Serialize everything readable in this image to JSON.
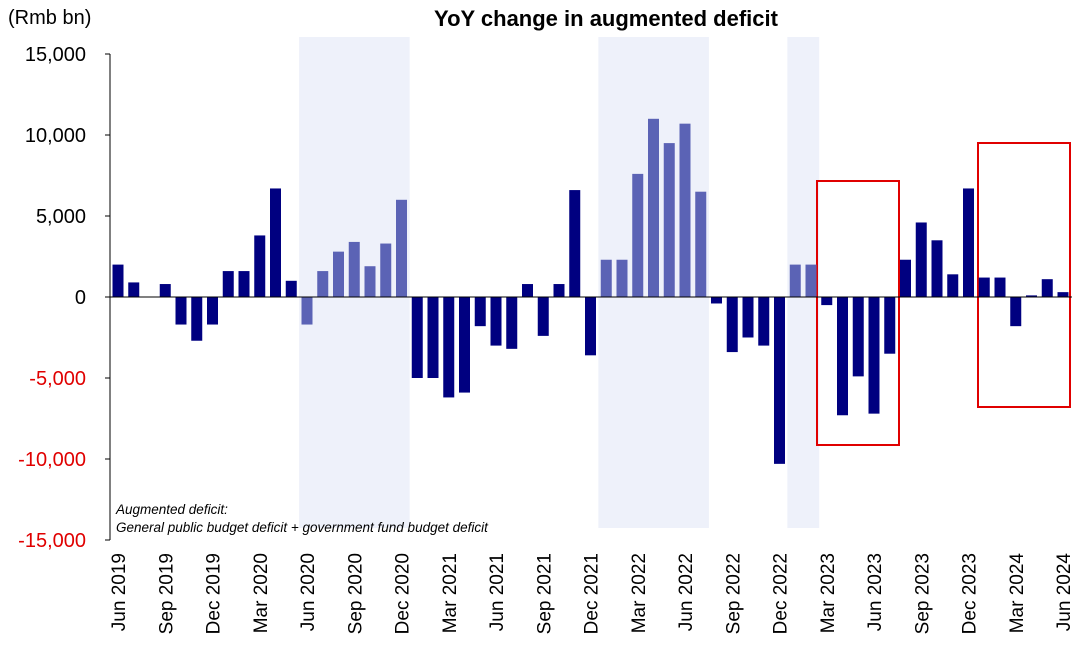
{
  "chart_data": {
    "type": "bar",
    "title": "YoY change in augmented deficit",
    "y_axis_label": "(Rmb bn)",
    "annotation": [
      "Augmented deficit:",
      "General public budget deficit + government fund budget deficit"
    ],
    "categories": [
      "Jun 2019",
      null,
      null,
      "Sep 2019",
      null,
      null,
      "Dec 2019",
      null,
      null,
      "Mar 2020",
      null,
      null,
      "Jun 2020",
      null,
      null,
      "Sep 2020",
      null,
      null,
      "Dec 2020",
      null,
      null,
      "Mar 2021",
      null,
      null,
      "Jun 2021",
      null,
      null,
      "Sep 2021",
      null,
      null,
      "Dec 2021",
      null,
      null,
      "Mar 2022",
      null,
      null,
      "Jun 2022",
      null,
      null,
      "Sep 2022",
      null,
      null,
      "Dec 2022",
      null,
      null,
      "Mar 2023",
      null,
      null,
      "Jun 2023",
      null,
      null,
      "Sep 2023",
      null,
      null,
      "Dec 2023",
      null,
      null,
      "Mar 2024",
      null,
      null,
      "Jun 2024"
    ],
    "values": [
      2000,
      900,
      0,
      800,
      -1700,
      -2700,
      -1700,
      1600,
      1600,
      3800,
      6700,
      1000,
      -1700,
      1600,
      2800,
      3400,
      1900,
      3300,
      6000,
      -5000,
      -5000,
      -6200,
      -5900,
      -1800,
      -3000,
      -3200,
      800,
      -2400,
      800,
      6600,
      -3600,
      2300,
      2300,
      7600,
      11000,
      9500,
      10700,
      6500,
      -400,
      -3400,
      -2500,
      -3000,
      -10300,
      2000,
      2000,
      -500,
      -7300,
      -4900,
      -7200,
      -3500,
      2300,
      4600,
      3500,
      1400,
      6700,
      1200,
      1200,
      -1800,
      100,
      1100,
      300
    ],
    "colors": [
      "#000080",
      "#000080",
      "#000080",
      "#000080",
      "#000080",
      "#000080",
      "#000080",
      "#000080",
      "#000080",
      "#000080",
      "#000080",
      "#000080",
      "#5b63b5",
      "#5b63b5",
      "#5b63b5",
      "#5b63b5",
      "#5b63b5",
      "#5b63b5",
      "#5b63b5",
      "#000080",
      "#000080",
      "#000080",
      "#000080",
      "#000080",
      "#000080",
      "#000080",
      "#000080",
      "#000080",
      "#000080",
      "#000080",
      "#000080",
      "#5b63b5",
      "#5b63b5",
      "#5b63b5",
      "#5b63b5",
      "#5b63b5",
      "#5b63b5",
      "#5b63b5",
      "#000080",
      "#000080",
      "#000080",
      "#000080",
      "#000080",
      "#5b63b5",
      "#5b63b5",
      "#000080",
      "#000080",
      "#000080",
      "#000080",
      "#000080",
      "#000080",
      "#000080",
      "#000080",
      "#000080",
      "#000080",
      "#000080",
      "#000080",
      "#000080",
      "#000080",
      "#000080",
      "#000080"
    ],
    "highlight_color": "#5b63b5",
    "band_color": "#eef1fa",
    "ylim": [
      -15000,
      15000
    ],
    "yticks": [
      {
        "value": -15000,
        "label": "-15,000"
      },
      {
        "value": -10000,
        "label": "-10,000"
      },
      {
        "value": -5000,
        "label": "-5,000"
      },
      0,
      {
        "value": 5000,
        "label": "5,000"
      },
      {
        "value": 10000,
        "label": "10,000"
      },
      {
        "value": 15000,
        "label": "15,000"
      }
    ]
  }
}
